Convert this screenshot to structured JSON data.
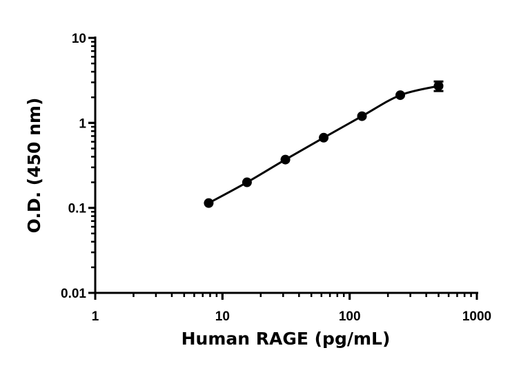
{
  "chart_data": {
    "type": "scatter",
    "title": "",
    "xlabel": "Human RAGE (pg/mL)",
    "ylabel": "O.D. (450 nm)",
    "xscale": "log",
    "yscale": "log",
    "xlim": [
      1,
      1000
    ],
    "ylim": [
      0.01,
      10
    ],
    "xticks": [
      "1",
      "10",
      "100",
      "1000"
    ],
    "yticks": [
      "0.01",
      "0.1",
      "1",
      "10"
    ],
    "grid": false,
    "legend": "none",
    "fit_curve": true,
    "color": "#000000",
    "series": [
      {
        "x": [
          7.8,
          15.6,
          31.25,
          62.5,
          125,
          250,
          500
        ],
        "y": [
          0.114,
          0.2,
          0.37,
          0.67,
          1.2,
          2.12,
          2.72
        ],
        "error": [
          0.004,
          0.006,
          0.01,
          0.02,
          0.04,
          0.08,
          0.35
        ]
      }
    ]
  }
}
